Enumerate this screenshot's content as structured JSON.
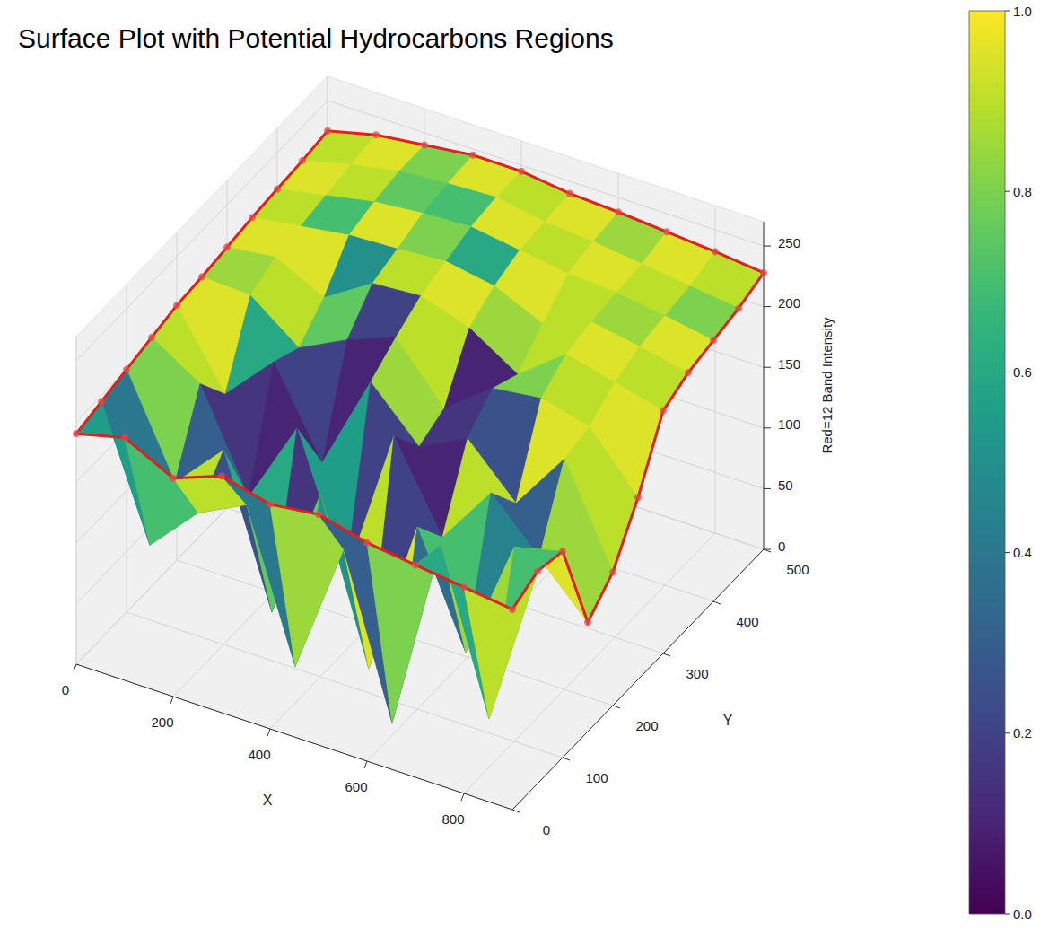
{
  "chart_data": {
    "type": "surface",
    "title": "Surface Plot with Potential Hydrocarbons Regions",
    "x_label": "X",
    "y_label": "Y",
    "z_label": "Red=12 Band Intensity",
    "x": [
      0,
      100,
      200,
      300,
      400,
      500,
      600,
      700,
      800,
      900
    ],
    "y": [
      0,
      50,
      100,
      150,
      200,
      250,
      300,
      350,
      400,
      450,
      500
    ],
    "z": [
      [
        190,
        200,
        180,
        195,
        185,
        190,
        180,
        175,
        170,
        165
      ],
      [
        195,
        90,
        130,
        150,
        30,
        140,
        10,
        170,
        40,
        175
      ],
      [
        200,
        120,
        160,
        40,
        150,
        20,
        150,
        60,
        160,
        170
      ],
      [
        205,
        180,
        100,
        170,
        60,
        190,
        120,
        170,
        130,
        90
      ],
      [
        210,
        150,
        190,
        120,
        200,
        160,
        180,
        140,
        190,
        110
      ],
      [
        212,
        210,
        180,
        200,
        215,
        170,
        200,
        205,
        195,
        150
      ],
      [
        215,
        220,
        200,
        225,
        228,
        215,
        190,
        220,
        210,
        200
      ],
      [
        218,
        224,
        230,
        232,
        235,
        228,
        210,
        225,
        218,
        210
      ],
      [
        220,
        228,
        236,
        240,
        242,
        236,
        230,
        228,
        222,
        215
      ],
      [
        222,
        232,
        240,
        243,
        245,
        238,
        235,
        230,
        225,
        220
      ],
      [
        225,
        235,
        240,
        245,
        245,
        240,
        238,
        235,
        232,
        228
      ]
    ],
    "color_values": [
      [
        0.55,
        0.7,
        0.9,
        0.4,
        0.85,
        0.3,
        0.8,
        0.6,
        0.9
      ],
      [
        0.4,
        0.9,
        0.25,
        0.75,
        0.5,
        0.95,
        0.35,
        0.85,
        0.7
      ],
      [
        0.8,
        0.3,
        0.6,
        0.15,
        0.9,
        0.2,
        0.7,
        0.45,
        0.95
      ],
      [
        0.9,
        0.15,
        0.1,
        0.55,
        0.2,
        0.1,
        0.9,
        0.3,
        0.85
      ],
      [
        0.95,
        0.6,
        0.2,
        0.1,
        0.85,
        0.15,
        0.25,
        0.95,
        0.9
      ],
      [
        0.85,
        0.9,
        0.75,
        0.2,
        0.9,
        0.1,
        0.8,
        0.9,
        0.95
      ],
      [
        0.95,
        0.95,
        0.5,
        0.9,
        0.95,
        0.85,
        0.9,
        0.95,
        0.9
      ],
      [
        0.9,
        0.7,
        0.95,
        0.8,
        0.6,
        0.95,
        0.9,
        0.85,
        0.95
      ],
      [
        0.95,
        0.9,
        0.75,
        0.7,
        0.95,
        0.9,
        0.95,
        0.9,
        0.8
      ],
      [
        0.9,
        0.95,
        0.8,
        0.95,
        0.9,
        0.95,
        0.85,
        0.95,
        0.9
      ]
    ],
    "xlim": [
      0,
      900
    ],
    "xticks": [
      0,
      200,
      400,
      600,
      800
    ],
    "ylim": [
      0,
      500
    ],
    "yticks": [
      0,
      100,
      200,
      300,
      400,
      500
    ],
    "zlim": [
      0,
      270
    ],
    "zticks": [
      0,
      50,
      100,
      150,
      200,
      250
    ],
    "colorbar_range": [
      0,
      1
    ],
    "colorbar_ticks": [
      {
        "value": 0,
        "label": "0.0"
      },
      0.2,
      0.4,
      0.6,
      0.8,
      {
        "value": 1,
        "label": "1.0"
      }
    ],
    "grid": true
  }
}
